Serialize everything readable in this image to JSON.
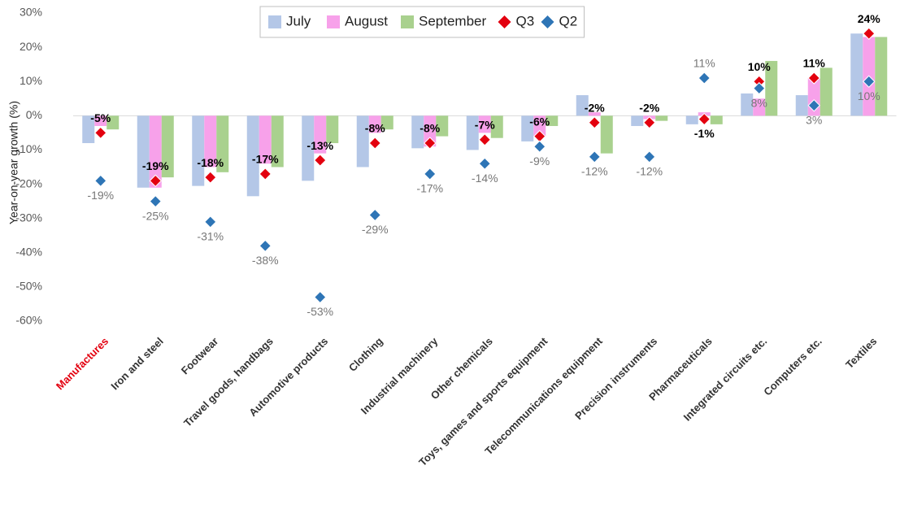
{
  "chart_data": {
    "type": "bar",
    "y_label": "Year-on-year growth (%)",
    "categories": [
      "Manufactures",
      "Iron and steel",
      "Footwear",
      "Travel goods, handbags",
      "Automotive products",
      "Clothing",
      "Industrial machinery",
      "Other chemicals",
      "Toys, games and sports equipment",
      "Telecommunications equipment",
      "Precision instruments",
      "Pharmaceuticals",
      "Integrated circuits etc.",
      "Computers etc.",
      "Textiles"
    ],
    "series": [
      {
        "name": "July",
        "kind": "bar",
        "color": "#b4c7e7",
        "values": [
          -8,
          -21,
          -20.5,
          -23.5,
          -19,
          -15,
          -9.5,
          -10,
          -7.5,
          6,
          -3,
          -2.5,
          6.5,
          6,
          24
        ]
      },
      {
        "name": "August",
        "kind": "bar",
        "color": "#f7a1ea",
        "values": [
          -3,
          -21,
          -15,
          -14,
          -11,
          -5,
          -9,
          -5,
          -6,
          1,
          -1,
          1,
          5,
          11,
          23
        ]
      },
      {
        "name": "September",
        "kind": "bar",
        "color": "#a9d18e",
        "values": [
          -4,
          -18,
          -16.5,
          -15,
          -8,
          -4,
          -6,
          -6.5,
          -3,
          -11,
          -1.5,
          -2.5,
          16,
          14,
          23
        ]
      },
      {
        "name": "Q3",
        "kind": "marker",
        "color": "#e3000f",
        "values": [
          -5,
          -19,
          -18,
          -17,
          -13,
          -8,
          -8,
          -7,
          -6,
          -2,
          -2,
          -1,
          10,
          11,
          24
        ],
        "value_labels": [
          "-5%",
          "-19%",
          "-18%",
          "-17%",
          "-13%",
          "-8%",
          "-8%",
          "-7%",
          "-6%",
          "-2%",
          "-2%",
          "-1%",
          "10%",
          "11%",
          "24%"
        ]
      },
      {
        "name": "Q2",
        "kind": "marker",
        "color": "#2e75b6",
        "values": [
          -19,
          -25,
          -31,
          -38,
          -53,
          -29,
          -17,
          -14,
          -9,
          -12,
          -12,
          11,
          8,
          3,
          10
        ],
        "value_labels": [
          "-19%",
          "-25%",
          "-31%",
          "-38%",
          "-53%",
          "-29%",
          "-17%",
          "-14%",
          "-9%",
          "-12%",
          "-12%",
          "11%",
          "8%",
          "3%",
          "10%"
        ]
      }
    ],
    "ylim": [
      -60,
      30
    ],
    "yticks": [
      {
        "value": -60,
        "label": "-60%"
      },
      {
        "value": -50,
        "label": "-50%"
      },
      {
        "value": -40,
        "label": "-40%"
      },
      {
        "value": -30,
        "label": "-30%"
      },
      {
        "value": -20,
        "label": "-20%"
      },
      {
        "value": -10,
        "label": "-10%"
      },
      {
        "value": 0,
        "label": "0%"
      },
      {
        "value": 10,
        "label": "10%"
      },
      {
        "value": 20,
        "label": "20%"
      },
      {
        "value": 30,
        "label": "30%"
      }
    ],
    "highlight_color": "#e3000f",
    "legend": "top"
  }
}
